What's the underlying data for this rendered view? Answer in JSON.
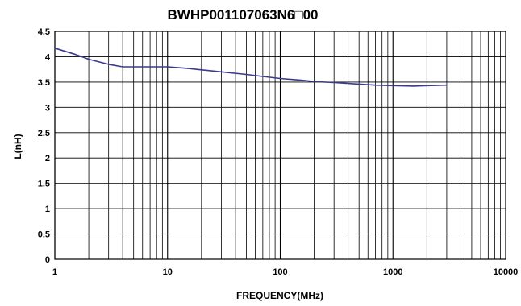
{
  "chart_data": {
    "type": "line",
    "title": "BWHP001107063N6□00",
    "xlabel": "FREQUENCY(MHz)",
    "ylabel": "L(nH)",
    "x_scale": "log",
    "xlim": [
      1,
      10000
    ],
    "ylim": [
      0,
      4.5
    ],
    "x_ticks": [
      1,
      10,
      100,
      1000,
      10000
    ],
    "x_tick_labels": [
      "1",
      "10",
      "100",
      "1000",
      "10000"
    ],
    "y_ticks": [
      0,
      0.5,
      1,
      1.5,
      2,
      2.5,
      3,
      3.5,
      4,
      4.5
    ],
    "y_tick_labels": [
      "0",
      "0.5",
      "1",
      "1.5",
      "2",
      "2.5",
      "3",
      "3.5",
      "4",
      "4.5"
    ],
    "grid": true,
    "colors": {
      "line": "#3b3a8c",
      "grid": "#000000"
    },
    "series": [
      {
        "x": [
          1,
          1.5,
          2,
          3,
          4,
          5,
          7,
          10,
          15,
          20,
          30,
          50,
          70,
          100,
          150,
          200,
          300,
          500,
          700,
          1000,
          1500,
          2000,
          3000
        ],
        "y": [
          4.17,
          4.05,
          3.95,
          3.85,
          3.8,
          3.8,
          3.8,
          3.8,
          3.77,
          3.74,
          3.7,
          3.65,
          3.61,
          3.57,
          3.54,
          3.51,
          3.49,
          3.46,
          3.44,
          3.43,
          3.42,
          3.43,
          3.44
        ]
      }
    ]
  }
}
